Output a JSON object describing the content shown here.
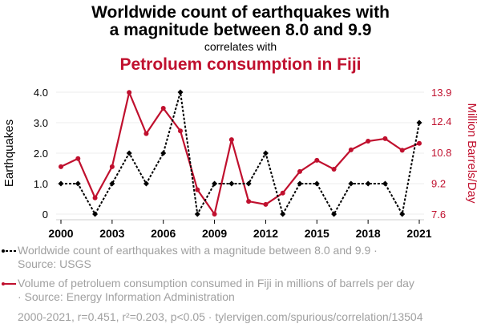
{
  "header": {
    "title_line1": "Worldwide count of earthquakes with",
    "title_line2": "a magnitude between 8.0 and 9.9",
    "subtitle": "correlates with",
    "title2": "Petroluem consumption in Fiji"
  },
  "legend": {
    "series1_line1": "Worldwide count of earthquakes with a magnitude between 8.0 and 9.9 ·",
    "series1_line2": "Source: USGS",
    "series2_line1": "Volume of petroluem consumption consumed in Fiji in millions of barrels per day",
    "series2_line2": "· Source: Energy Information Administration"
  },
  "footer": "2000-2021, r=0.451, r²=0.203, p<0.05 · tylervigen.com/spurious/correlation/13504",
  "colors": {
    "series1": "#000000",
    "series2": "#C0102E",
    "grid": "#eeeeee",
    "legend_text": "#a0a0a0"
  },
  "chart_data": {
    "type": "line",
    "title": "Worldwide count of earthquakes with a magnitude between 8.0 and 9.9 correlates with Petroluem consumption in Fiji",
    "x": [
      2000,
      2001,
      2002,
      2003,
      2004,
      2005,
      2006,
      2007,
      2008,
      2009,
      2010,
      2011,
      2012,
      2013,
      2014,
      2015,
      2016,
      2017,
      2018,
      2019,
      2020,
      2021
    ],
    "xlim": [
      2000,
      2021
    ],
    "xticks": [
      "2000",
      "2003",
      "2006",
      "2009",
      "2012",
      "2015",
      "2018",
      "2021"
    ],
    "xtick_values": [
      2000,
      2003,
      2006,
      2009,
      2012,
      2015,
      2018,
      2021
    ],
    "grid": true,
    "legend_position": "bottom",
    "series": [
      {
        "name": "Worldwide count of earthquakes with a magnitude between 8.0 and 9.9",
        "axis": "left",
        "style": "dashed",
        "values": [
          1,
          1,
          0,
          1,
          2,
          1,
          2,
          4,
          0,
          1,
          1,
          1,
          2,
          0,
          1,
          1,
          0,
          1,
          1,
          1,
          0,
          3
        ]
      },
      {
        "name": "Volume of petroluem consumption consumed in Fiji in millions of barrels per day",
        "axis": "right",
        "style": "solid",
        "values": [
          10.05,
          10.47,
          8.44,
          10.05,
          13.89,
          11.76,
          13.07,
          11.9,
          8.86,
          7.6,
          11.45,
          8.26,
          8.1,
          8.69,
          9.8,
          10.38,
          9.92,
          10.92,
          11.37,
          11.5,
          10.9,
          11.26
        ]
      }
    ],
    "y_left": {
      "label": "Earthquakes",
      "ylim": [
        0,
        4
      ],
      "ticks": [
        0,
        1,
        2,
        3,
        4
      ],
      "tick_labels": [
        "0",
        "1.0",
        "2.0",
        "3.0",
        "4.0"
      ]
    },
    "y_right": {
      "label": "Million Barrels/Day",
      "ylim": [
        7.6,
        13.9
      ],
      "ticks": [
        7.6,
        9.2,
        10.8,
        12.4,
        13.9
      ],
      "tick_labels": [
        "7.6",
        "9.2",
        "10.8",
        "12.4",
        "13.9"
      ]
    }
  }
}
